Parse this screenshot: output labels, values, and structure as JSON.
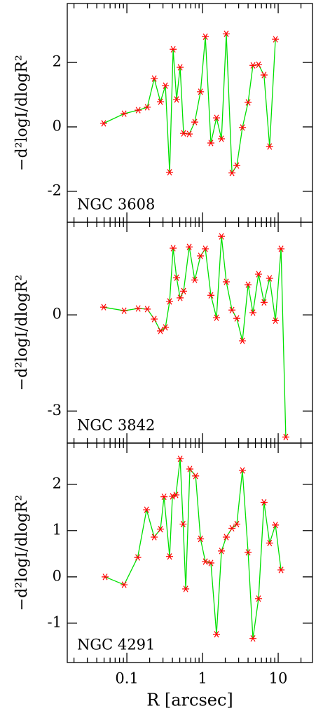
{
  "chart_data": [
    {
      "type": "line",
      "label": "NGC 3608",
      "ylabel": "−d²logI/dlogR²",
      "xscale": "log",
      "color": "#00e000",
      "marker_color": "#ff0000",
      "xlim": [
        0.0163,
        28.4
      ],
      "xticks": [
        0.1,
        1,
        10
      ],
      "ylim": [
        -2.96,
        3.83
      ],
      "yticks": [
        -2,
        0,
        2
      ],
      "x": [
        0.0494,
        0.092,
        0.141,
        0.186,
        0.23,
        0.278,
        0.323,
        0.367,
        0.409,
        0.454,
        0.506,
        0.562,
        0.667,
        0.79,
        0.94,
        1.09,
        1.29,
        1.53,
        1.78,
        2.06,
        2.45,
        2.84,
        3.37,
        4.0,
        4.64,
        5.5,
        6.5,
        7.7,
        9.2
      ],
      "values": [
        0.11,
        0.41,
        0.52,
        0.61,
        1.5,
        0.78,
        1.28,
        -1.41,
        2.41,
        0.85,
        1.85,
        -0.2,
        -0.22,
        0.15,
        1.09,
        2.8,
        -0.5,
        0.28,
        -0.37,
        2.89,
        -1.43,
        -1.2,
        -0.02,
        0.76,
        1.91,
        1.93,
        1.61,
        -0.61,
        2.72
      ]
    },
    {
      "type": "line",
      "label": "NGC 3842",
      "ylabel": "−d²logI/dlogR²",
      "xscale": "log",
      "color": "#00e000",
      "marker_color": "#ff0000",
      "xlim": [
        0.0163,
        28.4
      ],
      "xticks": [
        0.1,
        1,
        10
      ],
      "ylim": [
        -4.0,
        2.89
      ],
      "yticks": [
        -3,
        0
      ],
      "x": [
        0.0494,
        0.092,
        0.141,
        0.186,
        0.23,
        0.278,
        0.323,
        0.367,
        0.409,
        0.454,
        0.506,
        0.562,
        0.667,
        0.79,
        0.94,
        1.09,
        1.29,
        1.53,
        1.78,
        2.06,
        2.45,
        2.84,
        3.37,
        4.0,
        4.64,
        5.5,
        6.5,
        7.7,
        9.2,
        10.9,
        12.6
      ],
      "values": [
        0.24,
        0.13,
        0.2,
        0.18,
        -0.13,
        -0.5,
        -0.39,
        0.42,
        2.08,
        1.16,
        0.53,
        0.74,
        2.12,
        1.09,
        1.84,
        2.06,
        0.61,
        -0.09,
        2.45,
        1.03,
        0.15,
        -0.11,
        -0.81,
        0.94,
        0.07,
        1.27,
        0.39,
        1.14,
        -0.18,
        2.06,
        -3.81
      ]
    },
    {
      "type": "line",
      "label": "NGC 4291",
      "ylabel": "−d²logI/dlogR²",
      "xlabel": "R [arcsec]",
      "xscale": "log",
      "color": "#00e000",
      "marker_color": "#ff0000",
      "xlim": [
        0.0163,
        28.4
      ],
      "xticks": [
        0.1,
        1,
        10
      ],
      "ylim": [
        -1.85,
        2.89
      ],
      "yticks": [
        -1,
        0,
        1,
        2
      ],
      "x": [
        0.0516,
        0.092,
        0.139,
        0.182,
        0.23,
        0.278,
        0.31,
        0.367,
        0.4,
        0.445,
        0.506,
        0.554,
        0.6,
        0.68,
        0.81,
        0.94,
        1.09,
        1.29,
        1.53,
        1.78,
        2.06,
        2.45,
        2.84,
        3.37,
        4.0,
        4.64,
        5.5,
        6.5,
        7.7,
        9.2,
        10.9
      ],
      "values": [
        0.0,
        -0.17,
        0.42,
        1.45,
        0.86,
        1.03,
        1.73,
        0.44,
        1.74,
        1.77,
        2.55,
        1.14,
        -0.26,
        2.33,
        2.18,
        0.82,
        0.33,
        0.3,
        -1.24,
        0.56,
        0.86,
        1.05,
        1.14,
        2.3,
        0.53,
        -1.33,
        -0.47,
        1.61,
        0.73,
        1.12,
        0.15
      ]
    }
  ]
}
